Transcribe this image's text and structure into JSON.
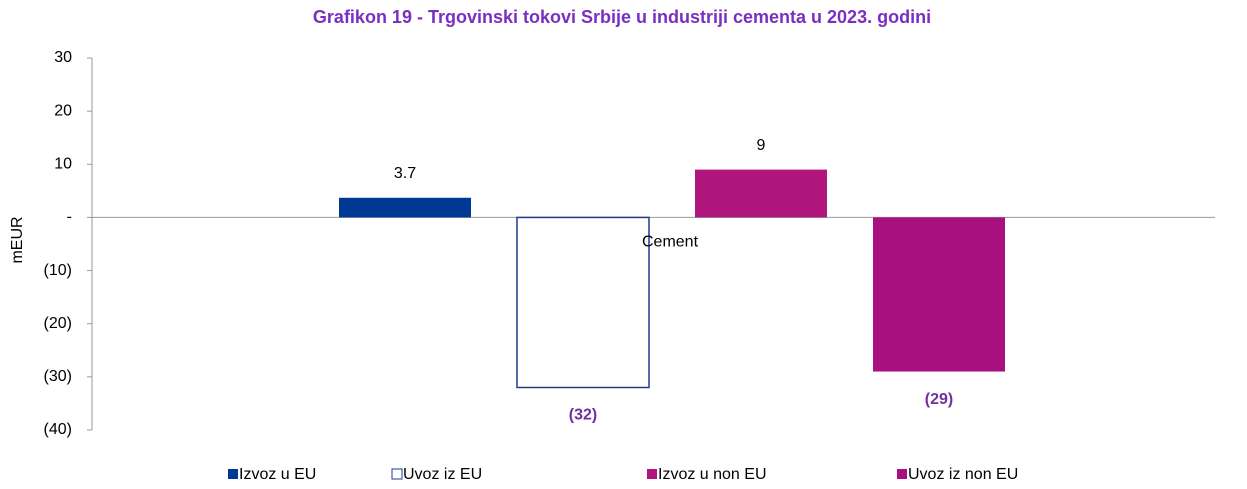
{
  "chart_data": {
    "type": "bar",
    "title": "Grafikon 19 - Trgovinski tokovi Srbije u industriji cementa u 2023. godini",
    "y_label": "mEUR",
    "categories": [
      "Cement"
    ],
    "series": [
      {
        "name": "Izvoz u EU",
        "color": "#003893",
        "values": [
          3.7
        ],
        "value_labels": [
          "3.7"
        ]
      },
      {
        "name": "Uvoz iz EU",
        "color": "#ffffff",
        "edge_color": "#1f3c88",
        "values": [
          -32
        ],
        "value_labels": [
          "(32)"
        ]
      },
      {
        "name": "Izvoz u non EU",
        "color": "#b0167e",
        "values": [
          9
        ],
        "value_labels": [
          "9"
        ]
      },
      {
        "name": "Uvoz iz non EU",
        "color": "#a8107f",
        "values": [
          -29
        ],
        "value_labels": [
          "(29)"
        ]
      }
    ],
    "ylim": [
      -40,
      30
    ],
    "yticks": [
      {
        "value": -40,
        "label": "(40)"
      },
      {
        "value": -30,
        "label": "(30)"
      },
      {
        "value": -20,
        "label": "(20)"
      },
      {
        "value": -10,
        "label": "(10)"
      },
      {
        "value": 0,
        "label": "-"
      },
      10,
      20,
      30
    ],
    "legend": "bottom"
  }
}
